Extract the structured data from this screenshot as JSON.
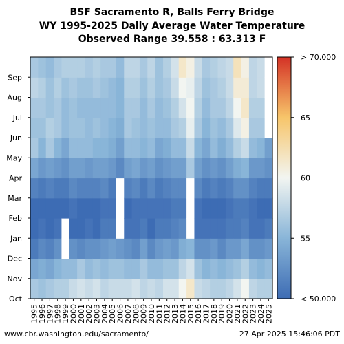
{
  "chart_data": {
    "type": "heatmap",
    "title": [
      "BSF Sacramento R, Balls Ferry Bridge",
      "WY 1995-2025 Daily Average Water Temperature",
      "Observed Range 39.558 : 63.313 F"
    ],
    "xlabel": "",
    "ylabel": "",
    "x_categories": [
      "1995",
      "1996",
      "1997",
      "1998",
      "1999",
      "2000",
      "2001",
      "2002",
      "2003",
      "2004",
      "2005",
      "2006",
      "2007",
      "2008",
      "2009",
      "2010",
      "2011",
      "2012",
      "2013",
      "2014",
      "2015",
      "2016",
      "2017",
      "2018",
      "2019",
      "2020",
      "2021",
      "2022",
      "2023",
      "2024",
      "2025"
    ],
    "y_categories": [
      "Oct",
      "Nov",
      "Dec",
      "Jan",
      "Feb",
      "Mar",
      "Apr",
      "May",
      "Jun",
      "Jul",
      "Aug",
      "Sep"
    ],
    "values": [
      [
        56.5,
        54.0,
        51.0,
        49.0,
        49.0,
        51.5,
        54.0,
        56.5,
        56.0,
        56.5,
        57.5,
        56.5
      ],
      [
        56.0,
        54.5,
        52.0,
        50.5,
        50.0,
        51.0,
        53.0,
        55.0,
        56.0,
        56.5,
        57.0,
        56.0
      ],
      [
        56.5,
        54.0,
        51.5,
        50.0,
        49.5,
        51.5,
        53.5,
        56.5,
        57.0,
        56.0,
        56.0,
        55.5
      ],
      [
        57.0,
        55.0,
        52.5,
        50.5,
        50.0,
        51.0,
        53.0,
        55.0,
        56.5,
        56.5,
        57.0,
        56.5
      ],
      [
        57.0,
        55.5,
        null,
        null,
        50.0,
        51.0,
        52.5,
        54.0,
        55.5,
        55.5,
        56.0,
        57.0
      ],
      [
        58.0,
        55.5,
        52.5,
        50.0,
        50.5,
        52.0,
        53.5,
        55.5,
        56.0,
        56.0,
        56.5,
        57.0
      ],
      [
        58.5,
        56.5,
        52.0,
        50.0,
        50.0,
        51.5,
        53.5,
        55.5,
        56.0,
        55.5,
        56.0,
        57.0
      ],
      [
        58.0,
        55.5,
        52.5,
        50.5,
        50.0,
        51.5,
        53.0,
        55.5,
        55.5,
        55.5,
        56.0,
        56.5
      ],
      [
        58.5,
        56.0,
        52.5,
        50.0,
        50.0,
        51.5,
        53.5,
        55.0,
        56.0,
        55.5,
        56.5,
        57.0
      ],
      [
        57.5,
        55.5,
        53.0,
        51.0,
        50.5,
        52.0,
        53.5,
        55.0,
        55.5,
        55.5,
        56.0,
        56.5
      ],
      [
        58.0,
        56.0,
        53.5,
        51.0,
        50.5,
        51.0,
        53.0,
        54.5,
        55.0,
        55.5,
        55.5,
        56.5
      ],
      [
        58.0,
        56.0,
        53.0,
        null,
        null,
        null,
        52.0,
        53.5,
        54.5,
        55.0,
        55.0,
        55.5
      ],
      [
        58.0,
        55.5,
        52.5,
        50.5,
        50.0,
        51.5,
        53.5,
        55.5,
        56.5,
        56.5,
        57.0,
        57.5
      ],
      [
        58.5,
        55.5,
        52.0,
        50.5,
        50.5,
        52.0,
        54.0,
        55.5,
        56.0,
        56.5,
        57.0,
        57.5
      ],
      [
        57.5,
        56.5,
        53.5,
        51.0,
        50.5,
        51.0,
        53.0,
        55.0,
        55.5,
        55.5,
        56.0,
        56.5
      ],
      [
        58.0,
        55.5,
        52.0,
        50.0,
        50.5,
        52.0,
        53.5,
        55.5,
        56.0,
        56.5,
        57.0,
        57.5
      ],
      [
        57.5,
        55.5,
        53.0,
        51.0,
        50.5,
        51.0,
        52.5,
        54.0,
        55.5,
        55.5,
        56.0,
        56.0
      ],
      [
        58.5,
        56.0,
        53.5,
        51.0,
        50.5,
        51.5,
        53.0,
        54.5,
        55.5,
        56.0,
        56.5,
        57.0
      ],
      [
        58.5,
        56.0,
        53.0,
        51.5,
        51.0,
        52.0,
        53.5,
        55.5,
        56.5,
        57.0,
        58.0,
        58.5
      ],
      [
        60.0,
        57.5,
        54.5,
        52.0,
        51.0,
        52.0,
        53.5,
        55.5,
        57.0,
        58.5,
        60.0,
        61.5
      ],
      [
        61.5,
        58.5,
        55.0,
        null,
        null,
        null,
        56.5,
        58.0,
        59.5,
        60.0,
        59.5,
        60.5
      ],
      [
        58.0,
        56.0,
        52.5,
        50.5,
        50.5,
        52.0,
        53.5,
        55.0,
        56.5,
        57.0,
        57.5,
        58.0
      ],
      [
        57.5,
        55.0,
        52.5,
        50.5,
        50.0,
        51.0,
        52.5,
        54.0,
        55.0,
        55.5,
        56.0,
        56.5
      ],
      [
        57.0,
        55.5,
        53.0,
        50.5,
        50.0,
        51.5,
        53.0,
        55.5,
        56.0,
        56.5,
        56.5,
        57.0
      ],
      [
        57.0,
        55.0,
        52.0,
        50.5,
        50.0,
        51.0,
        52.5,
        54.5,
        55.5,
        56.5,
        57.0,
        57.5
      ],
      [
        57.5,
        55.5,
        53.0,
        51.0,
        50.5,
        51.5,
        53.5,
        55.5,
        56.5,
        57.5,
        58.0,
        58.0
      ],
      [
        58.5,
        56.0,
        53.0,
        51.0,
        51.0,
        52.5,
        54.5,
        57.0,
        59.0,
        60.0,
        61.0,
        62.0
      ],
      [
        60.0,
        57.0,
        54.0,
        51.5,
        51.0,
        52.5,
        55.0,
        58.0,
        60.5,
        61.5,
        61.0,
        60.5
      ],
      [
        57.5,
        55.5,
        52.5,
        50.5,
        50.5,
        51.5,
        53.0,
        55.5,
        56.5,
        57.0,
        57.5,
        57.5
      ],
      [
        57.0,
        55.0,
        52.5,
        50.5,
        50.0,
        51.0,
        53.0,
        55.0,
        56.5,
        57.0,
        58.0,
        58.0
      ],
      [
        57.0,
        55.5,
        53.0,
        51.0,
        50.0,
        51.0,
        52.5,
        53.5,
        null,
        null,
        null,
        null
      ]
    ],
    "colorbar": {
      "min": 50,
      "max": 70,
      "ticks": [
        50,
        55,
        60,
        65,
        70
      ],
      "tick_labels": [
        "< 50.000",
        "55",
        "60",
        "65",
        "> 70.000"
      ],
      "colors": [
        "#3d6cb4",
        "#89b5d8",
        "#f2f5f1",
        "#f7c56a",
        "#d43226"
      ]
    },
    "grid": false,
    "missing_color": "#ffffff"
  },
  "footer": {
    "url": "www.cbr.washington.edu/sacramento/",
    "timestamp": "27 Apr 2025 15:46:06 PDT"
  }
}
